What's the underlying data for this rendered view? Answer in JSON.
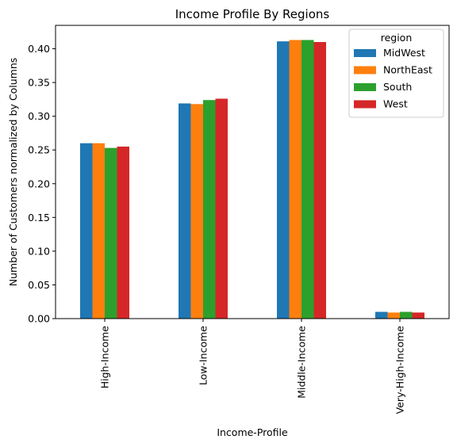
{
  "chart_data": {
    "type": "bar",
    "title": "Income Profile By Regions",
    "xlabel": "Income-Profile",
    "ylabel": "Number of Customers normalized by Columns",
    "categories": [
      "High-Income",
      "Low-Income",
      "Middle-Income",
      "Very-High-Income"
    ],
    "series": [
      {
        "name": "MidWest",
        "color": "#1f77b4",
        "values": [
          0.26,
          0.319,
          0.411,
          0.01
        ]
      },
      {
        "name": "NorthEast",
        "color": "#ff7f0e",
        "values": [
          0.26,
          0.318,
          0.413,
          0.009
        ]
      },
      {
        "name": "South",
        "color": "#2ca02c",
        "values": [
          0.253,
          0.324,
          0.413,
          0.01
        ]
      },
      {
        "name": "West",
        "color": "#d62728",
        "values": [
          0.255,
          0.326,
          0.41,
          0.009
        ]
      }
    ],
    "ylim": [
      0,
      0.4347
    ],
    "yticks": [
      0.0,
      0.05,
      0.1,
      0.15,
      0.2,
      0.25,
      0.3,
      0.35,
      0.4
    ],
    "ytick_labels": [
      "0.00",
      "0.05",
      "0.10",
      "0.15",
      "0.20",
      "0.25",
      "0.30",
      "0.35",
      "0.40"
    ],
    "grid": false,
    "legend": {
      "title": "region",
      "position": "top-right"
    }
  }
}
